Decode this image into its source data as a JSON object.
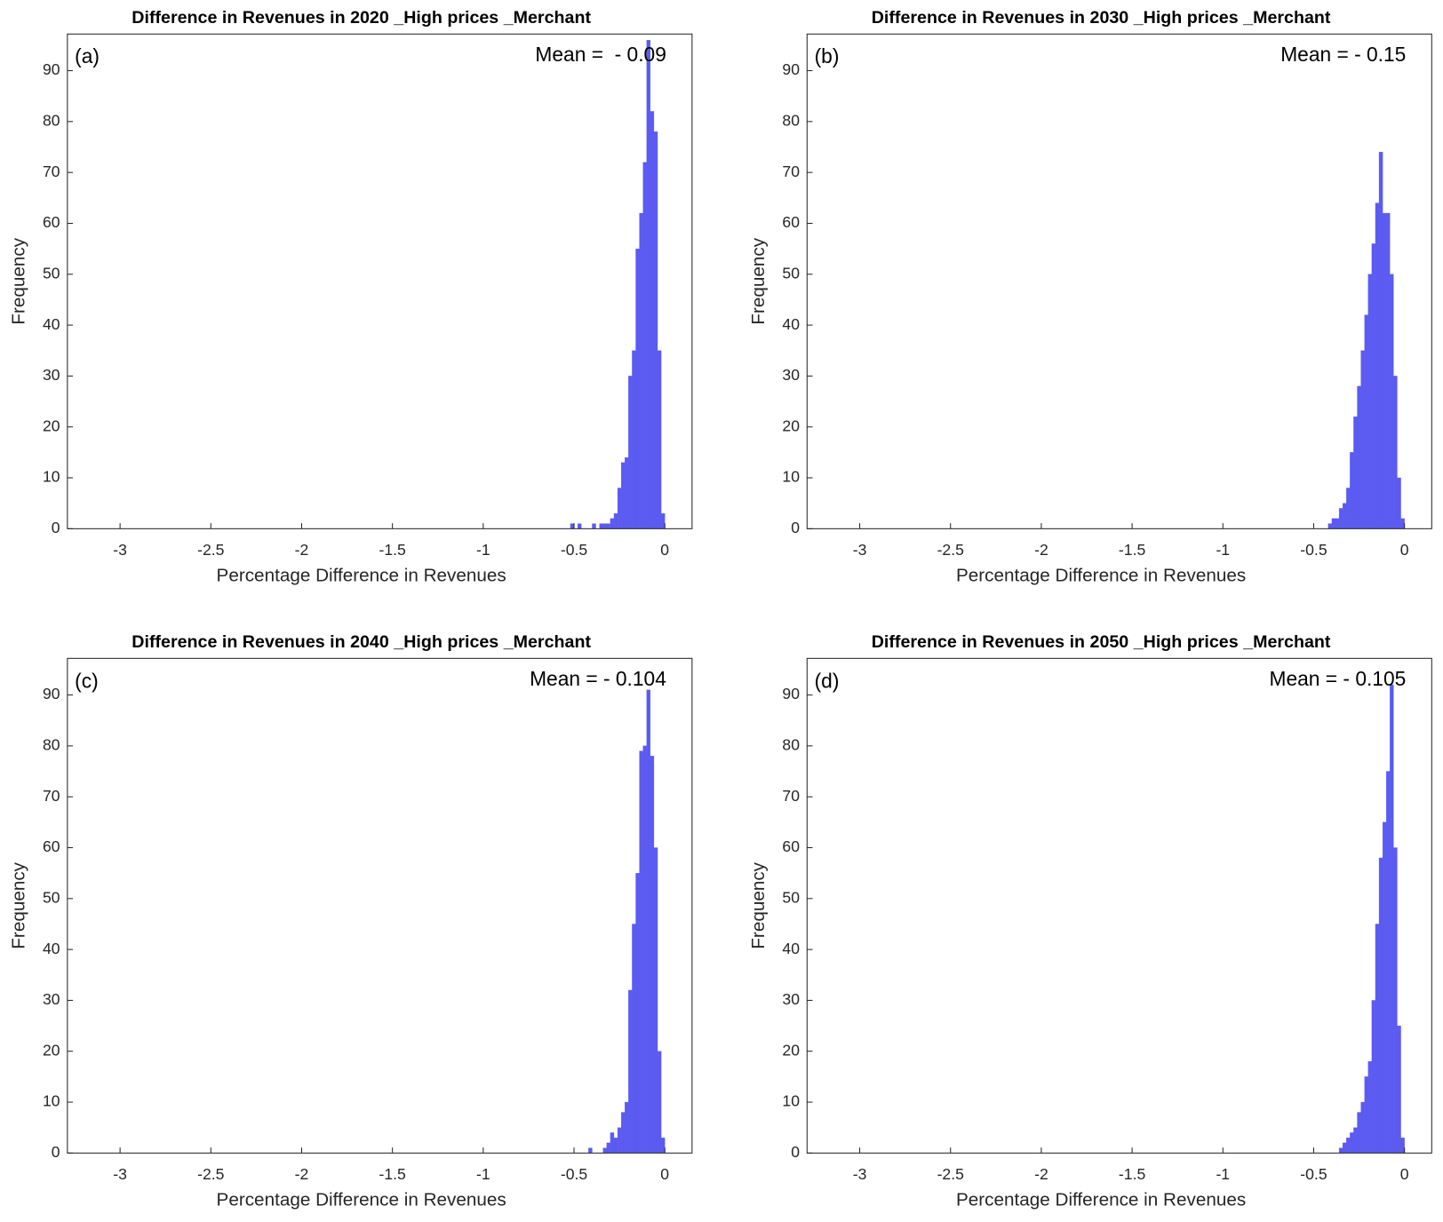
{
  "chart_data": [
    {
      "type": "histogram",
      "title": "Difference in Revenues in 2020 _High prices _Merchant",
      "panel_label": "(a)",
      "annotation": "Mean =  - 0.09",
      "xlabel": "Percentage Difference in Revenues",
      "ylabel": "Frequency",
      "color": "#5b5bf2",
      "bins": [
        -0.52,
        -0.5,
        -0.48,
        -0.46,
        -0.44,
        -0.42,
        -0.4,
        -0.38,
        -0.36,
        -0.34,
        -0.32,
        -0.3,
        -0.28,
        -0.26,
        -0.24,
        -0.22,
        -0.2,
        -0.18,
        -0.16,
        -0.14,
        -0.12,
        -0.1,
        -0.08,
        -0.06,
        -0.04,
        -0.02,
        0
      ],
      "counts": [
        1,
        0,
        1,
        0,
        0,
        0,
        1,
        0,
        1,
        1,
        1,
        2,
        3,
        8,
        13,
        14,
        30,
        35,
        55,
        62,
        72,
        96,
        82,
        78,
        35,
        3
      ],
      "xlim": [
        -3.29,
        0.15
      ],
      "ylim": [
        0,
        97.2
      ],
      "xticks": [
        -3,
        -2.5,
        -2,
        -1.5,
        -1,
        -0.5,
        0
      ],
      "yticks": [
        0,
        10,
        20,
        30,
        40,
        50,
        60,
        70,
        80,
        90
      ]
    },
    {
      "type": "histogram",
      "title": "Difference in Revenues in 2030 _High prices _Merchant",
      "panel_label": "(b)",
      "annotation": "Mean = - 0.15",
      "xlabel": "Percentage Difference in Revenues",
      "ylabel": "Frequency",
      "color": "#5b5bf2",
      "bins": [
        -0.42,
        -0.4,
        -0.38,
        -0.36,
        -0.34,
        -0.32,
        -0.3,
        -0.28,
        -0.26,
        -0.24,
        -0.22,
        -0.2,
        -0.18,
        -0.16,
        -0.14,
        -0.12,
        -0.1,
        -0.08,
        -0.06,
        -0.04,
        -0.02,
        0
      ],
      "counts": [
        1,
        2,
        2,
        4,
        5,
        8,
        15,
        22,
        28,
        35,
        42,
        50,
        56,
        64,
        74,
        62,
        62,
        50,
        30,
        10,
        2
      ],
      "xlim": [
        -3.29,
        0.15
      ],
      "ylim": [
        0,
        97.2
      ],
      "xticks": [
        -3,
        -2.5,
        -2,
        -1.5,
        -1,
        -0.5,
        0
      ],
      "yticks": [
        0,
        10,
        20,
        30,
        40,
        50,
        60,
        70,
        80,
        90
      ]
    },
    {
      "type": "histogram",
      "title": "Difference in Revenues in 2040 _High prices _Merchant",
      "panel_label": "(c)",
      "annotation": "Mean = - 0.104",
      "xlabel": "Percentage Difference in Revenues",
      "ylabel": "Frequency",
      "color": "#5b5bf2",
      "bins": [
        -0.42,
        -0.4,
        -0.38,
        -0.36,
        -0.34,
        -0.32,
        -0.3,
        -0.28,
        -0.26,
        -0.24,
        -0.22,
        -0.2,
        -0.18,
        -0.16,
        -0.14,
        -0.12,
        -0.1,
        -0.08,
        -0.06,
        -0.04,
        -0.02,
        0
      ],
      "counts": [
        1,
        0,
        0,
        0,
        1,
        2,
        4,
        3,
        5,
        8,
        10,
        32,
        45,
        55,
        79,
        80,
        91,
        78,
        60,
        20,
        3
      ],
      "xlim": [
        -3.29,
        0.15
      ],
      "ylim": [
        0,
        97.2
      ],
      "xticks": [
        -3,
        -2.5,
        -2,
        -1.5,
        -1,
        -0.5,
        0
      ],
      "yticks": [
        0,
        10,
        20,
        30,
        40,
        50,
        60,
        70,
        80,
        90
      ]
    },
    {
      "type": "histogram",
      "title": "Difference in Revenues in 2050 _High prices _Merchant",
      "panel_label": "(d)",
      "annotation": "Mean = - 0.105",
      "xlabel": "Percentage Difference in Revenues",
      "ylabel": "Frequency",
      "color": "#5b5bf2",
      "bins": [
        -0.42,
        -0.4,
        -0.38,
        -0.36,
        -0.34,
        -0.32,
        -0.3,
        -0.28,
        -0.26,
        -0.24,
        -0.22,
        -0.2,
        -0.18,
        -0.16,
        -0.14,
        -0.12,
        -0.1,
        -0.08,
        -0.06,
        -0.04,
        -0.02,
        0
      ],
      "counts": [
        0,
        0,
        0,
        1,
        2,
        3,
        4,
        5,
        8,
        10,
        15,
        18,
        30,
        45,
        58,
        65,
        75,
        92,
        60,
        25,
        3
      ],
      "xlim": [
        -3.29,
        0.15
      ],
      "ylim": [
        0,
        97.2
      ],
      "xticks": [
        -3,
        -2.5,
        -2,
        -1.5,
        -1,
        -0.5,
        0
      ],
      "yticks": [
        0,
        10,
        20,
        30,
        40,
        50,
        60,
        70,
        80,
        90
      ]
    }
  ]
}
